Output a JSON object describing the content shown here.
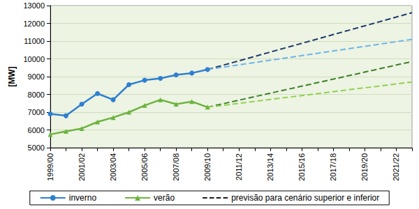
{
  "chart_data": {
    "type": "line",
    "y_label": "[MW]",
    "categories": [
      "1999/00",
      null,
      "2001/02",
      null,
      "2003/04",
      null,
      "2005/06",
      null,
      "2007/08",
      null,
      "2009/10",
      null,
      "2011/12",
      null,
      "2013/14",
      null,
      "2015/16",
      null,
      "2017/18",
      null,
      "2019/20",
      null,
      "2021/22",
      null
    ],
    "series": [
      {
        "name": "inverno",
        "color": "#2e7fd0",
        "marker": "circle",
        "line_style": "solid",
        "values": [
          6900,
          6800,
          7450,
          8050,
          7700,
          8550,
          8800,
          8900,
          9100,
          9200,
          9400,
          null,
          null,
          null,
          null,
          null,
          null,
          null,
          null,
          null,
          null,
          null,
          null,
          null
        ]
      },
      {
        "name": "verão",
        "color": "#6db33f",
        "marker": "triangle",
        "line_style": "solid",
        "values": [
          5750,
          5920,
          6080,
          6450,
          6700,
          7000,
          7380,
          7700,
          7450,
          7600,
          7280,
          null,
          null,
          null,
          null,
          null,
          null,
          null,
          null,
          null,
          null,
          null,
          null,
          null
        ]
      },
      {
        "name": "previsão para cenário superior e inferior",
        "color": "#1f3a6e",
        "marker": "none",
        "line_style": "dashed",
        "values": [
          null,
          null,
          null,
          null,
          null,
          null,
          null,
          null,
          null,
          null,
          9400,
          null,
          null,
          null,
          null,
          null,
          null,
          null,
          null,
          null,
          null,
          null,
          null,
          12600
        ]
      },
      {
        "name": "previsão para cenário superior e inferior",
        "color": "#6cb4ea",
        "marker": "none",
        "line_style": "dashed",
        "values": [
          null,
          null,
          null,
          null,
          null,
          null,
          null,
          null,
          null,
          null,
          9400,
          null,
          null,
          null,
          null,
          null,
          null,
          null,
          null,
          null,
          null,
          null,
          null,
          11100
        ]
      },
      {
        "name": "previsão para cenário superior e inferior",
        "color": "#3d7f2a",
        "marker": "none",
        "line_style": "dashed",
        "values": [
          null,
          null,
          null,
          null,
          null,
          null,
          null,
          null,
          null,
          null,
          7280,
          null,
          null,
          null,
          null,
          null,
          null,
          null,
          null,
          null,
          null,
          null,
          null,
          9850
        ]
      },
      {
        "name": "previsão para cenário superior e inferior",
        "color": "#92d050",
        "marker": "none",
        "line_style": "dashed",
        "values": [
          null,
          null,
          null,
          null,
          null,
          null,
          null,
          null,
          null,
          null,
          7280,
          null,
          null,
          null,
          null,
          null,
          null,
          null,
          null,
          null,
          null,
          null,
          null,
          8700
        ]
      }
    ],
    "ylim": [
      5000,
      13000
    ],
    "yticks": [
      5000,
      6000,
      7000,
      8000,
      9000,
      10000,
      11000,
      12000,
      13000
    ],
    "grid": true,
    "legend": "bottom"
  }
}
